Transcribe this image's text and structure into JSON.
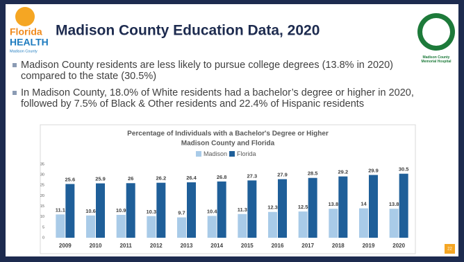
{
  "slide": {
    "title": "Madison County Education Data, 2020",
    "logo_left": {
      "line1": "Florida",
      "line2": "HEALTH",
      "line3": "Madison County"
    },
    "logo_right": "Madison County Memorial Hospital",
    "bullets": [
      "Madison County residents are less likely to pursue college degrees (13.8% in 2020) compared to the state (30.5%)",
      "In Madison County, 18.0% of White residents had a bachelor’s degree or higher in 2020, followed by 7.5% of Black & Other residents and 22.4% of Hispanic residents"
    ],
    "page_number": "22"
  },
  "chart_data": {
    "type": "bar",
    "title": "Percentage of Individuals with a Bachelor's Degree or Higher",
    "subtitle": "Madison County and Florida",
    "categories": [
      "2009",
      "2010",
      "2011",
      "2012",
      "2013",
      "2014",
      "2015",
      "2016",
      "2017",
      "2018",
      "2019",
      "2020"
    ],
    "series": [
      {
        "name": "Madison",
        "color": "#a9cbe8",
        "values": [
          11.1,
          10.6,
          10.9,
          10.3,
          9.7,
          10.4,
          11.3,
          12.3,
          12.5,
          13.8,
          14,
          13.8
        ]
      },
      {
        "name": "Florida",
        "color": "#1f5f99",
        "values": [
          25.6,
          25.9,
          26,
          26.2,
          26.4,
          26.8,
          27.3,
          27.9,
          28.5,
          29.2,
          29.9,
          30.5
        ]
      }
    ],
    "ylim": [
      0,
      35
    ],
    "yticks": [
      0,
      5,
      10,
      15,
      20,
      25,
      30,
      35
    ],
    "legend": "top"
  }
}
